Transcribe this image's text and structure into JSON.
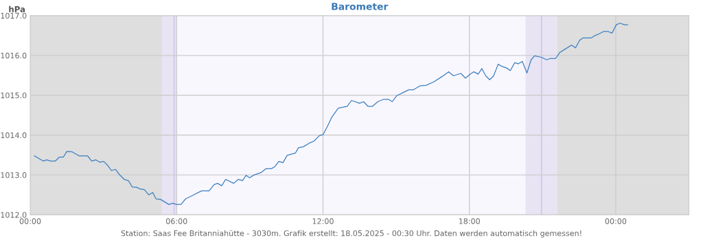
{
  "chart_data": {
    "type": "line",
    "title": "Barometer",
    "ylabel": "hPa",
    "x": [
      0.17,
      0.53,
      0.68,
      0.83,
      1.03,
      1.2,
      1.36,
      1.5,
      1.72,
      2.0,
      2.35,
      2.52,
      2.68,
      2.85,
      3.01,
      3.19,
      3.33,
      3.5,
      3.64,
      3.85,
      4.02,
      4.18,
      4.37,
      4.49,
      4.68,
      4.86,
      5.02,
      5.16,
      5.33,
      5.52,
      5.68,
      5.85,
      5.99,
      6.18,
      6.37,
      6.6,
      7.02,
      7.33,
      7.54,
      7.68,
      7.85,
      8.01,
      8.34,
      8.53,
      8.7,
      8.85,
      8.99,
      9.18,
      9.46,
      9.67,
      9.89,
      10.03,
      10.19,
      10.36,
      10.53,
      10.87,
      10.99,
      11.2,
      11.44,
      11.63,
      11.86,
      12.0,
      12.19,
      12.36,
      12.63,
      12.99,
      13.17,
      13.5,
      13.66,
      13.85,
      14.02,
      14.25,
      14.49,
      14.68,
      14.84,
      15.02,
      15.29,
      15.52,
      15.71,
      15.99,
      16.23,
      16.55,
      16.88,
      17.15,
      17.35,
      17.65,
      17.84,
      18.03,
      18.18,
      18.36,
      18.51,
      18.67,
      18.83,
      18.99,
      19.18,
      19.32,
      19.51,
      19.68,
      19.86,
      20.01,
      20.17,
      20.36,
      20.53,
      20.67,
      20.97,
      21.17,
      21.3,
      21.53,
      21.7,
      21.9,
      22.19,
      22.35,
      22.52,
      22.66,
      23.0,
      23.15,
      23.31,
      23.5,
      23.69,
      23.85,
      24.02,
      24.18,
      24.35,
      24.49
    ],
    "series": [
      {
        "color": "#3a7fc0",
        "values": [
          1013.48,
          1013.35,
          1013.38,
          1013.35,
          1013.35,
          1013.45,
          1013.45,
          1013.59,
          1013.58,
          1013.48,
          1013.48,
          1013.35,
          1013.38,
          1013.32,
          1013.34,
          1013.23,
          1013.11,
          1013.14,
          1013.02,
          1012.89,
          1012.86,
          1012.7,
          1012.69,
          1012.65,
          1012.63,
          1012.5,
          1012.56,
          1012.4,
          1012.39,
          1012.32,
          1012.26,
          1012.29,
          1012.26,
          1012.26,
          1012.4,
          1012.47,
          1012.6,
          1012.6,
          1012.76,
          1012.79,
          1012.73,
          1012.89,
          1012.79,
          1012.89,
          1012.86,
          1012.99,
          1012.93,
          1013.0,
          1013.06,
          1013.16,
          1013.16,
          1013.21,
          1013.34,
          1013.31,
          1013.49,
          1013.55,
          1013.68,
          1013.71,
          1013.8,
          1013.85,
          1013.99,
          1014.01,
          1014.23,
          1014.45,
          1014.68,
          1014.72,
          1014.87,
          1014.8,
          1014.84,
          1014.72,
          1014.72,
          1014.84,
          1014.9,
          1014.9,
          1014.84,
          1014.99,
          1015.07,
          1015.14,
          1015.14,
          1015.24,
          1015.25,
          1015.34,
          1015.47,
          1015.59,
          1015.49,
          1015.55,
          1015.43,
          1015.53,
          1015.59,
          1015.53,
          1015.67,
          1015.49,
          1015.39,
          1015.48,
          1015.78,
          1015.73,
          1015.69,
          1015.62,
          1015.82,
          1015.79,
          1015.85,
          1015.56,
          1015.89,
          1015.99,
          1015.95,
          1015.89,
          1015.92,
          1015.92,
          1016.07,
          1016.15,
          1016.26,
          1016.19,
          1016.38,
          1016.44,
          1016.44,
          1016.5,
          1016.54,
          1016.6,
          1016.6,
          1016.56,
          1016.77,
          1016.81,
          1016.77,
          1016.77
        ]
      }
    ],
    "xlim": [
      0,
      27
    ],
    "xticks": [
      {
        "value": 0,
        "label": "00:00"
      },
      {
        "value": 6,
        "label": "06:00"
      },
      {
        "value": 12,
        "label": "12:00"
      },
      {
        "value": 18,
        "label": "18:00"
      },
      {
        "value": 24,
        "label": "00:00"
      }
    ],
    "ylim": [
      1012,
      1017
    ],
    "yticks": [
      {
        "value": 1012,
        "label": "1012.0"
      },
      {
        "value": 1013,
        "label": "1013.0"
      },
      {
        "value": 1014,
        "label": "1014.0"
      },
      {
        "value": 1015,
        "label": "1015.0"
      },
      {
        "value": 1016,
        "label": "1016.0"
      },
      {
        "value": 1017,
        "label": "1017.0"
      }
    ],
    "bands": [
      {
        "axis": "x",
        "from": 0,
        "to": 5.4,
        "color": "#dedede"
      },
      {
        "axis": "x",
        "from": 5.4,
        "to": 6.0,
        "color": "#e8e4f4"
      },
      {
        "axis": "x",
        "from": 20.3,
        "to": 21.6,
        "color": "#e8e4f4"
      },
      {
        "axis": "x",
        "from": 21.6,
        "to": 27,
        "color": "#dedede"
      }
    ],
    "ref_lines": [
      {
        "axis": "x",
        "value": 5.9,
        "color": "#d4cce6"
      },
      {
        "axis": "x",
        "value": 20.96,
        "color": "#d4cce6"
      }
    ],
    "grid": true,
    "legend": false,
    "marker": "none",
    "line_style": "solid",
    "annotations": [
      "Station: Saas Fee Britanniahütte - 3030m. Grafik erstellt: 18.05.2025 - 00:30 Uhr. Daten werden automatisch gemessen!"
    ]
  }
}
